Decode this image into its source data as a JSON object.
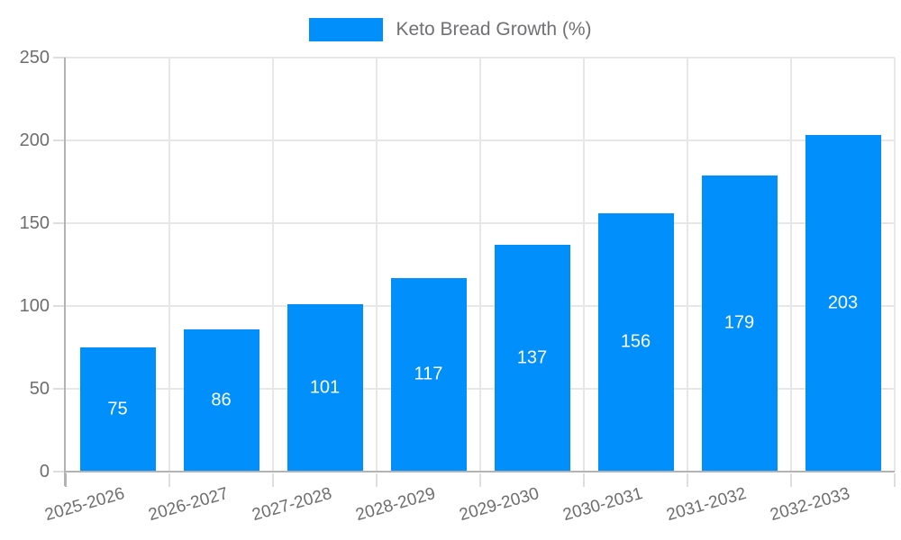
{
  "legend": {
    "label": "Keto Bread Growth (%)"
  },
  "colors": {
    "bar": "#008FFB",
    "grid": "#e7e7e7",
    "axis": "#b3b3b3",
    "tick": "#dedede",
    "axis_label": "#6e6e6e",
    "legend_text": "#707075",
    "value_label": "#ffffff",
    "background": "#ffffff"
  },
  "chart_data": {
    "type": "bar",
    "title": "Keto Bread Growth (%)",
    "categories": [
      "2025-2026",
      "2026-2027",
      "2027-2028",
      "2028-2029",
      "2029-2030",
      "2030-2031",
      "2031-2032",
      "2032-2033"
    ],
    "series": [
      {
        "name": "Keto Bread Growth (%)",
        "values": [
          75,
          86,
          101,
          117,
          137,
          156,
          179,
          203
        ]
      }
    ],
    "xlabel": "",
    "ylabel": "",
    "ylim": [
      0,
      250
    ],
    "yticks": [
      0,
      50,
      100,
      150,
      200,
      250
    ],
    "grid": true,
    "legend_position": "top",
    "value_labels": "inside-center",
    "x_label_rotation_deg": -16
  }
}
